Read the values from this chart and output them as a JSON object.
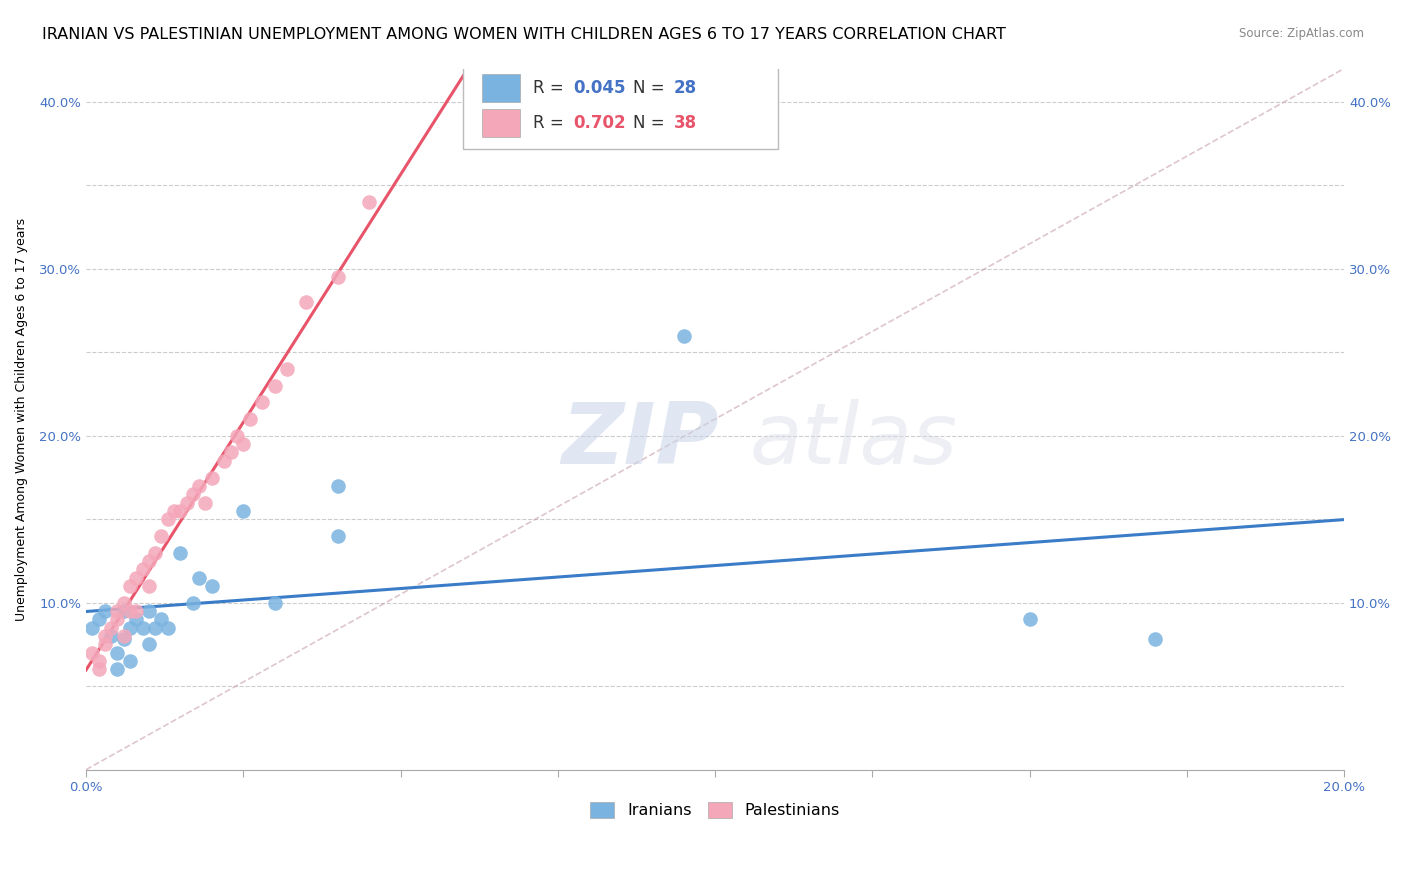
{
  "title": "IRANIAN VS PALESTINIAN UNEMPLOYMENT AMONG WOMEN WITH CHILDREN AGES 6 TO 17 YEARS CORRELATION CHART",
  "source": "Source: ZipAtlas.com",
  "ylabel": "Unemployment Among Women with Children Ages 6 to 17 years",
  "xlim": [
    0.0,
    0.2
  ],
  "ylim": [
    0.0,
    0.42
  ],
  "xticks": [
    0.0,
    0.025,
    0.05,
    0.075,
    0.1,
    0.125,
    0.15,
    0.175,
    0.2
  ],
  "xticklabels": [
    "0.0%",
    "",
    "",
    "",
    "",
    "",
    "",
    "",
    "20.0%"
  ],
  "yticks": [
    0.0,
    0.05,
    0.1,
    0.15,
    0.2,
    0.25,
    0.3,
    0.35,
    0.4
  ],
  "yticklabels": [
    "",
    "",
    "10.0%",
    "",
    "20.0%",
    "",
    "30.0%",
    "",
    "40.0%"
  ],
  "iranian_color": "#7ab3e0",
  "palestinian_color": "#f4a7b9",
  "iranian_line_color": "#3a7cc7",
  "palestinian_line_color": "#e8546a",
  "diagonal_color": "#c8a0a8",
  "grid_color": "#cccccc",
  "watermark_zip": "ZIP",
  "watermark_atlas": "atlas",
  "legend_R_iranian": "0.045",
  "legend_N_iranian": "28",
  "legend_R_palestinian": "0.702",
  "legend_N_palestinian": "38",
  "iranians_x": [
    0.001,
    0.002,
    0.003,
    0.004,
    0.005,
    0.005,
    0.006,
    0.006,
    0.007,
    0.007,
    0.008,
    0.009,
    0.01,
    0.01,
    0.011,
    0.012,
    0.013,
    0.015,
    0.017,
    0.018,
    0.02,
    0.025,
    0.03,
    0.04,
    0.04,
    0.095,
    0.15,
    0.17
  ],
  "iranians_y": [
    0.085,
    0.09,
    0.095,
    0.08,
    0.07,
    0.06,
    0.095,
    0.078,
    0.085,
    0.065,
    0.09,
    0.085,
    0.095,
    0.075,
    0.085,
    0.09,
    0.085,
    0.13,
    0.1,
    0.115,
    0.11,
    0.155,
    0.1,
    0.17,
    0.14,
    0.26,
    0.09,
    0.078
  ],
  "palestinians_x": [
    0.001,
    0.002,
    0.002,
    0.003,
    0.003,
    0.004,
    0.005,
    0.005,
    0.006,
    0.006,
    0.007,
    0.007,
    0.008,
    0.008,
    0.009,
    0.01,
    0.01,
    0.011,
    0.012,
    0.013,
    0.014,
    0.015,
    0.016,
    0.017,
    0.018,
    0.019,
    0.02,
    0.022,
    0.023,
    0.024,
    0.025,
    0.026,
    0.028,
    0.03,
    0.032,
    0.035,
    0.04,
    0.045
  ],
  "palestinians_y": [
    0.07,
    0.065,
    0.06,
    0.075,
    0.08,
    0.085,
    0.09,
    0.095,
    0.1,
    0.08,
    0.095,
    0.11,
    0.095,
    0.115,
    0.12,
    0.11,
    0.125,
    0.13,
    0.14,
    0.15,
    0.155,
    0.155,
    0.16,
    0.165,
    0.17,
    0.16,
    0.175,
    0.185,
    0.19,
    0.2,
    0.195,
    0.21,
    0.22,
    0.23,
    0.24,
    0.28,
    0.295,
    0.34
  ],
  "background_color": "#ffffff",
  "title_fontsize": 11.5,
  "axis_fontsize": 9,
  "tick_fontsize": 9.5
}
